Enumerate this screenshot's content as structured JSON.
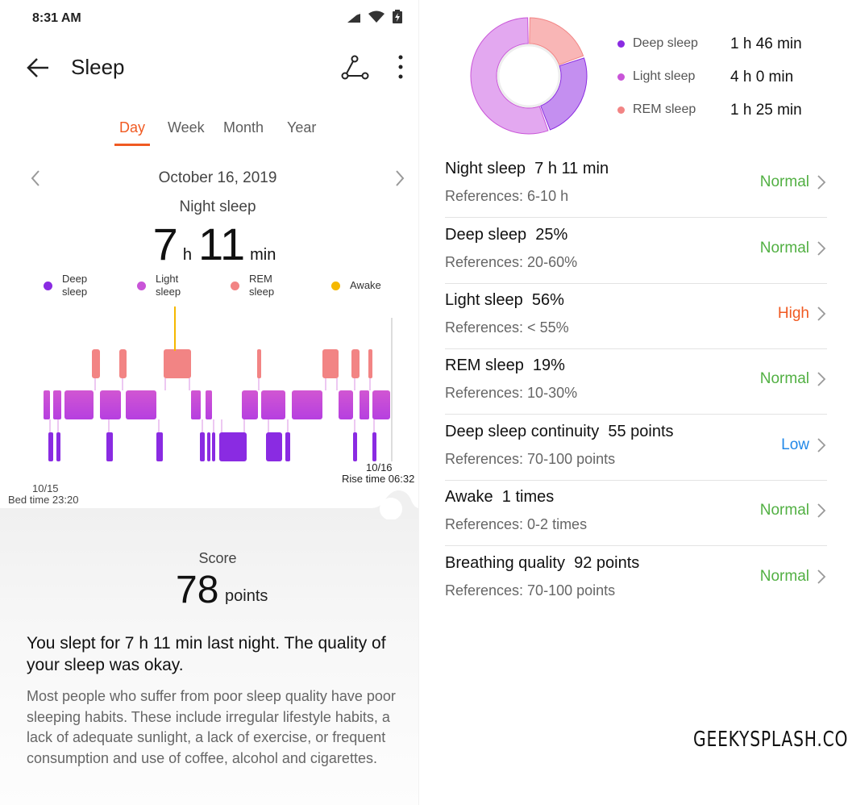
{
  "status_bar": {
    "time": "8:31 AM"
  },
  "header": {
    "title": "Sleep"
  },
  "tabs": [
    {
      "label": "Day"
    },
    {
      "label": "Week"
    },
    {
      "label": "Month"
    },
    {
      "label": "Year"
    }
  ],
  "active_tab": "Day",
  "date": "October 16, 2019",
  "night_sleep": {
    "title": "Night sleep",
    "hours": "7",
    "hours_unit": "h",
    "minutes": "11",
    "minutes_unit": "min"
  },
  "legend": [
    {
      "line1": "Deep",
      "line2": "sleep",
      "color": "#8a2be2"
    },
    {
      "line1": "Light",
      "line2": "sleep",
      "color": "#c955d8"
    },
    {
      "line1": "REM",
      "line2": "sleep",
      "color": "#f28484"
    },
    {
      "line1": "Awake",
      "line2": "",
      "color": "#f5b800"
    }
  ],
  "chart": {
    "bed_date": "10/15",
    "bed_time": "Bed time 23:20",
    "rise_date": "10/16",
    "rise_time": "Rise time 06:32"
  },
  "score": {
    "label": "Score",
    "value": "78",
    "unit": "points"
  },
  "summary": "You slept for 7 h 11 min last night. The quality of your sleep was okay.",
  "advice": "Most people who suffer from poor sleep quality have poor sleeping habits. These include irregular lifestyle habits, a lack of adequate sunlight, a lack of exercise, or frequent consumption and use of coffee, alcohol and cigarettes.",
  "sleep_stages": [
    {
      "name": "Deep sleep",
      "value": "1 h 46 min",
      "minutes": 106,
      "color": "#8a2be2"
    },
    {
      "name": "Light sleep",
      "value": "4 h 0 min",
      "minutes": 240,
      "color": "#c955d8"
    },
    {
      "name": "REM sleep",
      "value": "1 h 25 min",
      "minutes": 85,
      "color": "#f28484"
    }
  ],
  "metrics": [
    {
      "title": "Night sleep  7 h 11 min",
      "ref": "References: 6-10 h",
      "status": "Normal",
      "level": "normal"
    },
    {
      "title": "Deep sleep  25%",
      "ref": "References: 20-60%",
      "status": "Normal",
      "level": "normal"
    },
    {
      "title": "Light sleep  56%",
      "ref": "References: < 55%",
      "status": "High",
      "level": "high"
    },
    {
      "title": "REM sleep  19%",
      "ref": "References: 10-30%",
      "status": "Normal",
      "level": "normal"
    },
    {
      "title": "Deep sleep continuity  55 points",
      "ref": "References: 70-100 points",
      "status": "Low",
      "level": "low"
    },
    {
      "title": "Awake  1 times",
      "ref": "References: 0-2 times",
      "status": "Normal",
      "level": "normal"
    },
    {
      "title": "Breathing quality  92 points",
      "ref": "References: 70-100 points",
      "status": "Normal",
      "level": "normal"
    }
  ],
  "watermark": "GEEKYSPLASH.COM"
}
